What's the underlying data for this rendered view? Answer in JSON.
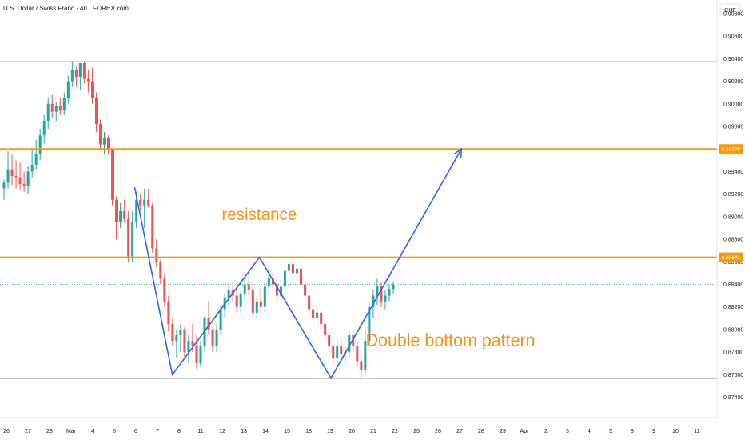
{
  "header": {
    "title": "U.S. Dollar / Swiss Franc · 4h · FOREX.com",
    "currency": "CHF"
  },
  "colors": {
    "up": "#26a69a",
    "down": "#ef5350",
    "level": "#ff9800",
    "pattern": "#2962ff",
    "current": "#26a69a",
    "text_orange": "#f7931a"
  },
  "chart_data": {
    "type": "candlestick",
    "title": "U.S. Dollar / Swiss Franc · 4h · FOREX.com",
    "ylim": [
      0.8722,
      0.9092
    ],
    "xlim": [
      0,
      73.5
    ],
    "y_ticks": [
      "0.87400",
      "0.87600",
      "0.87800",
      "0.88000",
      "0.88200",
      "0.88400",
      "0.88600",
      "0.88800",
      "0.89000",
      "0.89200",
      "0.89400",
      "0.89600",
      "0.89800",
      "0.90000",
      "0.90200",
      "0.90400",
      "0.90600",
      "0.90800"
    ],
    "x_ticks": [
      {
        "label": "26",
        "day": 0
      },
      {
        "label": "27",
        "day": 2
      },
      {
        "label": "28",
        "day": 4
      },
      {
        "label": "Mar",
        "day": 6
      },
      {
        "label": "4",
        "day": 8
      },
      {
        "label": "5",
        "day": 10
      },
      {
        "label": "6",
        "day": 12
      },
      {
        "label": "7",
        "day": 14
      },
      {
        "label": "8",
        "day": 16
      },
      {
        "label": "11",
        "day": 18
      },
      {
        "label": "12",
        "day": 20
      },
      {
        "label": "13",
        "day": 22
      },
      {
        "label": "14",
        "day": 24
      },
      {
        "label": "15",
        "day": 26
      },
      {
        "label": "18",
        "day": 28
      },
      {
        "label": "19",
        "day": 30
      },
      {
        "label": "20",
        "day": 32
      },
      {
        "label": "21",
        "day": 34
      },
      {
        "label": "22",
        "day": 36
      },
      {
        "label": "25",
        "day": 38
      },
      {
        "label": "26",
        "day": 40
      },
      {
        "label": "27",
        "day": 42
      },
      {
        "label": "28",
        "day": 44
      },
      {
        "label": "29",
        "day": 46
      },
      {
        "label": "Apr",
        "day": 48
      },
      {
        "label": "2",
        "day": 50
      },
      {
        "label": "3",
        "day": 52
      },
      {
        "label": "4",
        "day": 54
      },
      {
        "label": "5",
        "day": 56
      },
      {
        "label": "8",
        "day": 58
      },
      {
        "label": "9",
        "day": 60
      },
      {
        "label": "10",
        "day": 62
      },
      {
        "label": "11",
        "day": 64
      }
    ],
    "candles": [
      [
        0.8925,
        0.8933,
        0.8915,
        0.893
      ],
      [
        0.893,
        0.8958,
        0.8925,
        0.8942
      ],
      [
        0.8942,
        0.8955,
        0.8928,
        0.8936
      ],
      [
        0.8936,
        0.895,
        0.8925,
        0.8935
      ],
      [
        0.8935,
        0.8948,
        0.8924,
        0.8929
      ],
      [
        0.8929,
        0.894,
        0.8922,
        0.8927
      ],
      [
        0.8927,
        0.8945,
        0.892,
        0.894
      ],
      [
        0.894,
        0.896,
        0.8935,
        0.8946
      ],
      [
        0.8946,
        0.8968,
        0.8942,
        0.8956
      ],
      [
        0.8956,
        0.8978,
        0.895,
        0.8972
      ],
      [
        0.8972,
        0.899,
        0.8965,
        0.8985
      ],
      [
        0.8985,
        0.9005,
        0.8978,
        0.9
      ],
      [
        0.9,
        0.9008,
        0.8988,
        0.8993
      ],
      [
        0.8993,
        0.9002,
        0.8985,
        0.8998
      ],
      [
        0.8998,
        0.9005,
        0.899,
        0.8994
      ],
      [
        0.8994,
        0.901,
        0.899,
        0.9005
      ],
      [
        0.9005,
        0.9025,
        0.9,
        0.902
      ],
      [
        0.902,
        0.9038,
        0.9015,
        0.903
      ],
      [
        0.903,
        0.9033,
        0.9015,
        0.9024
      ],
      [
        0.9024,
        0.9036,
        0.9012,
        0.9036
      ],
      [
        0.9036,
        0.9038,
        0.9018,
        0.9022
      ],
      [
        0.9022,
        0.903,
        0.901,
        0.902
      ],
      [
        0.902,
        0.9032,
        0.9,
        0.9005
      ],
      [
        0.9005,
        0.901,
        0.8975,
        0.8982
      ],
      [
        0.8982,
        0.8986,
        0.896,
        0.8964
      ],
      [
        0.8964,
        0.8975,
        0.8955,
        0.897
      ],
      [
        0.897,
        0.8972,
        0.8955,
        0.8959
      ],
      [
        0.8959,
        0.896,
        0.891,
        0.8915
      ],
      [
        0.8915,
        0.8918,
        0.888,
        0.8895
      ],
      [
        0.8895,
        0.8912,
        0.889,
        0.8905
      ],
      [
        0.8905,
        0.8915,
        0.8895,
        0.8898
      ],
      [
        0.8898,
        0.8905,
        0.886,
        0.8865
      ],
      [
        0.8865,
        0.8905,
        0.886,
        0.8895
      ],
      [
        0.8895,
        0.8922,
        0.889,
        0.8915
      ],
      [
        0.8915,
        0.892,
        0.8905,
        0.891
      ],
      [
        0.891,
        0.8925,
        0.889,
        0.8915
      ],
      [
        0.8915,
        0.8925,
        0.8908,
        0.891
      ],
      [
        0.891,
        0.8912,
        0.8868,
        0.8872
      ],
      [
        0.8872,
        0.888,
        0.8855,
        0.886
      ],
      [
        0.886,
        0.8862,
        0.884,
        0.8845
      ],
      [
        0.8845,
        0.885,
        0.882,
        0.8825
      ],
      [
        0.8825,
        0.883,
        0.8798,
        0.8805
      ],
      [
        0.8805,
        0.881,
        0.8785,
        0.879
      ],
      [
        0.879,
        0.88,
        0.8775,
        0.8795
      ],
      [
        0.8795,
        0.8805,
        0.878,
        0.88
      ],
      [
        0.88,
        0.8802,
        0.8775,
        0.878
      ],
      [
        0.878,
        0.8795,
        0.877,
        0.879
      ],
      [
        0.879,
        0.8805,
        0.878,
        0.8786
      ],
      [
        0.8786,
        0.8795,
        0.8765,
        0.877
      ],
      [
        0.877,
        0.879,
        0.8768,
        0.8785
      ],
      [
        0.8785,
        0.8812,
        0.878,
        0.881
      ],
      [
        0.881,
        0.8825,
        0.8795,
        0.88
      ],
      [
        0.88,
        0.8802,
        0.878,
        0.8785
      ],
      [
        0.8785,
        0.8805,
        0.878,
        0.88
      ],
      [
        0.88,
        0.8822,
        0.8795,
        0.8818
      ],
      [
        0.8818,
        0.8832,
        0.881,
        0.8828
      ],
      [
        0.8828,
        0.884,
        0.882,
        0.8835
      ],
      [
        0.8835,
        0.8842,
        0.8825,
        0.883
      ],
      [
        0.883,
        0.884,
        0.8815,
        0.882
      ],
      [
        0.882,
        0.8835,
        0.8815,
        0.8832
      ],
      [
        0.8832,
        0.8845,
        0.8828,
        0.884
      ],
      [
        0.884,
        0.885,
        0.883,
        0.8835
      ],
      [
        0.8835,
        0.884,
        0.881,
        0.8815
      ],
      [
        0.8815,
        0.883,
        0.881,
        0.8825
      ],
      [
        0.8825,
        0.8838,
        0.8815,
        0.882
      ],
      [
        0.882,
        0.884,
        0.8815,
        0.8838
      ],
      [
        0.8838,
        0.885,
        0.883,
        0.8846
      ],
      [
        0.8846,
        0.8852,
        0.8835,
        0.884
      ],
      [
        0.884,
        0.8845,
        0.8825,
        0.883
      ],
      [
        0.883,
        0.8842,
        0.8825,
        0.8838
      ],
      [
        0.8838,
        0.8855,
        0.8835,
        0.8852
      ],
      [
        0.8852,
        0.8865,
        0.8845,
        0.8858
      ],
      [
        0.8858,
        0.8862,
        0.8845,
        0.885
      ],
      [
        0.885,
        0.8858,
        0.884,
        0.8854
      ],
      [
        0.8854,
        0.8856,
        0.8835,
        0.884
      ],
      [
        0.884,
        0.8845,
        0.8825,
        0.883
      ],
      [
        0.883,
        0.8835,
        0.8812,
        0.8818
      ],
      [
        0.8818,
        0.8822,
        0.8805,
        0.881
      ],
      [
        0.881,
        0.882,
        0.88,
        0.8815
      ],
      [
        0.8815,
        0.8818,
        0.88,
        0.8805
      ],
      [
        0.8805,
        0.8808,
        0.879,
        0.8795
      ],
      [
        0.8795,
        0.88,
        0.878,
        0.8785
      ],
      [
        0.8785,
        0.8788,
        0.877,
        0.8775
      ],
      [
        0.8775,
        0.879,
        0.8768,
        0.8785
      ],
      [
        0.8785,
        0.879,
        0.8772,
        0.8778
      ],
      [
        0.8778,
        0.8785,
        0.877,
        0.878
      ],
      [
        0.878,
        0.88,
        0.8775,
        0.8795
      ],
      [
        0.8795,
        0.88,
        0.878,
        0.8785
      ],
      [
        0.8785,
        0.879,
        0.8768,
        0.8772
      ],
      [
        0.8772,
        0.8775,
        0.8758,
        0.8764
      ],
      [
        0.8764,
        0.88,
        0.876,
        0.879
      ],
      [
        0.879,
        0.8825,
        0.8785,
        0.882
      ],
      [
        0.882,
        0.8835,
        0.881,
        0.883
      ],
      [
        0.883,
        0.8845,
        0.8822,
        0.8838
      ],
      [
        0.8838,
        0.8842,
        0.882,
        0.8825
      ],
      [
        0.8825,
        0.8835,
        0.8818,
        0.883
      ],
      [
        0.883,
        0.884,
        0.8825,
        0.8836
      ],
      [
        0.8836,
        0.8842,
        0.8832,
        0.884
      ]
    ],
    "levels": [
      {
        "name": "resistance-upper",
        "value": 0.896,
        "tag": "0.89600"
      },
      {
        "name": "resistance-lower",
        "value": 0.8864,
        "tag": "0.88641"
      }
    ],
    "current_price": 0.884,
    "gray_levels": [
      0.90375,
      0.87565
    ],
    "pattern_path": [
      [
        13.6,
        0.8926
      ],
      [
        17.5,
        0.876
      ],
      [
        26.5,
        0.8864
      ],
      [
        33.9,
        0.8757
      ],
      [
        47.4,
        0.896
      ]
    ],
    "annotations": [
      {
        "name": "resistance-label",
        "text": "resistance",
        "day": 22.6,
        "price": 0.8897
      },
      {
        "name": "double-bottom-label",
        "text": "Double bottom pattern",
        "day": 37.5,
        "price": 0.8785
      }
    ]
  }
}
